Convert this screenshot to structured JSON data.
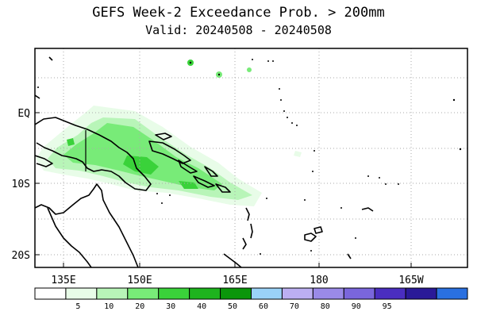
{
  "title": "GEFS Week-2 Exceedance Prob. > 200mm",
  "subtitle": "Valid: 20240508 - 20240508",
  "map": {
    "lon_labels": [
      "135E",
      "150E",
      "165E",
      "180",
      "165W"
    ],
    "lat_labels": [
      "EQ",
      "10S",
      "20S"
    ],
    "grid": true,
    "land_outline_color": "#000000",
    "grid_color": "#aaaaaa"
  },
  "colorbar": {
    "colors": [
      "#ffffff",
      "#e8fce8",
      "#b8f5b8",
      "#78eb78",
      "#3ad23a",
      "#1eb41e",
      "#0a960a",
      "#9ad2f8",
      "#bcaff2",
      "#9a8ae8",
      "#7a66dc",
      "#4a2ec0",
      "#2a1a98",
      "#2a70e0"
    ],
    "tick_labels": [
      "5",
      "10",
      "20",
      "30",
      "40",
      "50",
      "60",
      "70",
      "80",
      "90",
      "95"
    ]
  }
}
